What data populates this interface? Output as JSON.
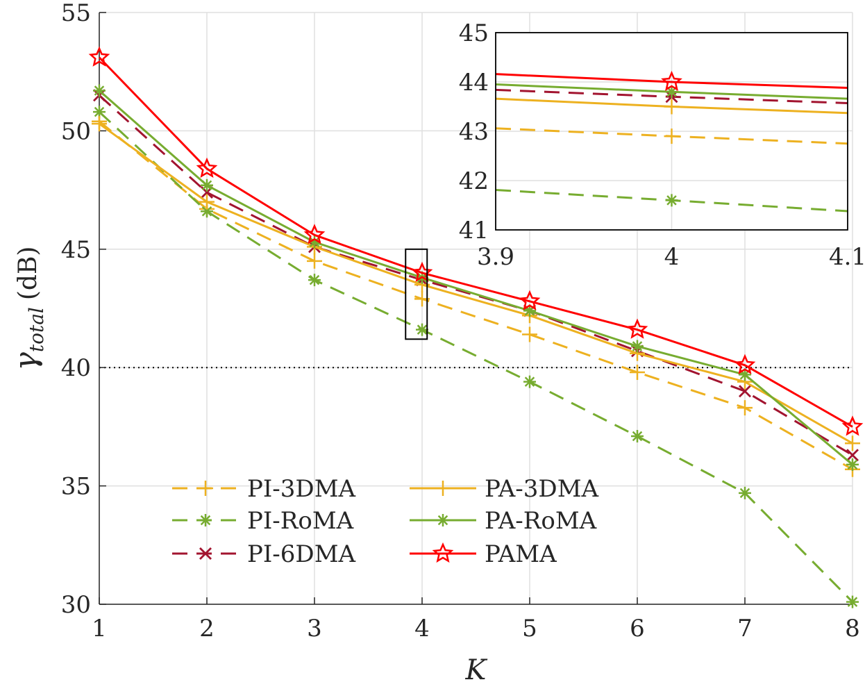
{
  "chart_data": {
    "type": "line",
    "xlabel": "K",
    "ylabel_symbol": "γ",
    "ylabel_subscript": "total",
    "ylabel_unit": "(dB)",
    "x": [
      1,
      2,
      3,
      4,
      5,
      6,
      7,
      8
    ],
    "xlim": [
      1,
      8
    ],
    "ylim": [
      30,
      55
    ],
    "xticks": [
      "1",
      "2",
      "3",
      "4",
      "5",
      "6",
      "7",
      "8"
    ],
    "yticks": [
      "30",
      "35",
      "40",
      "45",
      "50",
      "55"
    ],
    "grid": true,
    "reference_line": {
      "y": 40,
      "style": "dotted",
      "color": "#000000"
    },
    "legend_position": "lower-left",
    "series": [
      {
        "name": "PI-3DMA",
        "color": "#EDB120",
        "dash": "dashed",
        "marker": "plus",
        "values": [
          50.4,
          46.7,
          44.5,
          42.9,
          41.4,
          39.8,
          38.3,
          35.7
        ]
      },
      {
        "name": "PI-RoMA",
        "color": "#77AC30",
        "dash": "dashed",
        "marker": "asterisk",
        "values": [
          50.8,
          46.6,
          43.7,
          41.6,
          39.4,
          37.1,
          34.7,
          30.1
        ]
      },
      {
        "name": "PI-6DMA",
        "color": "#A2142F",
        "dash": "dashed",
        "marker": "x",
        "values": [
          51.5,
          47.4,
          45.1,
          43.7,
          42.4,
          40.7,
          39.0,
          36.3
        ]
      },
      {
        "name": "PA-3DMA",
        "color": "#EDB120",
        "dash": "solid",
        "marker": "plus",
        "values": [
          50.3,
          47.0,
          45.1,
          43.5,
          42.2,
          40.6,
          39.4,
          36.8
        ]
      },
      {
        "name": "PA-RoMA",
        "color": "#77AC30",
        "dash": "solid",
        "marker": "asterisk",
        "values": [
          51.7,
          47.7,
          45.3,
          43.8,
          42.4,
          40.9,
          39.7,
          35.9
        ]
      },
      {
        "name": "PAMA",
        "color": "#FF0000",
        "dash": "solid",
        "marker": "star",
        "values": [
          53.1,
          48.4,
          45.6,
          44.0,
          42.8,
          41.6,
          40.1,
          37.5
        ]
      }
    ],
    "inset": {
      "xlim": [
        3.9,
        4.1
      ],
      "ylim": [
        41,
        45
      ],
      "xticks": [
        "3.9",
        "4",
        "4.1"
      ],
      "yticks": [
        "41",
        "42",
        "43",
        "44",
        "45"
      ],
      "zoom_box_x": [
        3.9,
        4.1
      ],
      "zoom_box_y": [
        41.2,
        45.0
      ]
    }
  }
}
